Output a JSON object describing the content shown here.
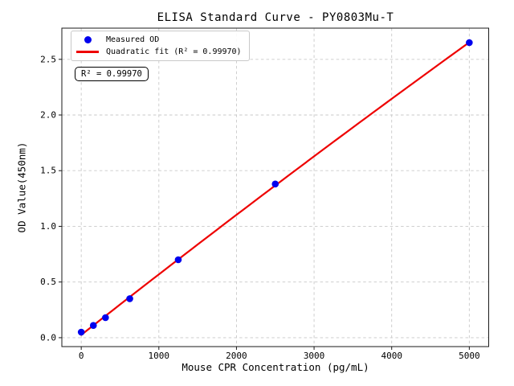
{
  "figure": {
    "title": "ELISA Standard Curve - PY0803Mu-T",
    "xlabel": "Mouse CPR Concentration (pg/mL)",
    "ylabel": "OD Value(450nm)",
    "annotation": "R² = 0.99970"
  },
  "legend": {
    "position": "upper left",
    "items": [
      {
        "label": "Measured OD",
        "marker": "dot",
        "color": "#0000ee"
      },
      {
        "label": "Quadratic fit (R² = 0.99970)",
        "marker": "line",
        "color": "#ee0000"
      }
    ]
  },
  "chart_data": {
    "type": "scatter",
    "title": "ELISA Standard Curve - PY0803Mu-T",
    "xlabel": "Mouse CPR Concentration (pg/mL)",
    "ylabel": "OD Value(450nm)",
    "x": [
      0,
      156.25,
      312.5,
      625,
      1250,
      2500,
      5000
    ],
    "series": [
      {
        "name": "Measured OD",
        "type": "scatter",
        "color": "#0000ee",
        "values": [
          0.05,
          0.11,
          0.18,
          0.35,
          0.7,
          1.38,
          2.65
        ]
      },
      {
        "name": "Quadratic fit (R² = 0.99970)",
        "type": "quadratic-fit",
        "color": "#ee0000",
        "r_squared": 0.9997
      }
    ],
    "xlim": [
      -250,
      5250
    ],
    "ylim": [
      -0.08,
      2.78
    ],
    "xticks": [
      0,
      1000,
      2000,
      3000,
      4000,
      5000
    ],
    "xtick_labels": [
      "0",
      "1000",
      "2000",
      "3000",
      "4000",
      "5000"
    ],
    "yticks": [
      0.0,
      0.5,
      1.0,
      1.5,
      2.0,
      2.5
    ],
    "ytick_labels": [
      "0.0",
      "0.5",
      "1.0",
      "1.5",
      "2.0",
      "2.5"
    ],
    "grid": true,
    "grid_color": "#c9c9c9",
    "spine_color": "#1a1a1a",
    "legend_position": "upper left"
  }
}
